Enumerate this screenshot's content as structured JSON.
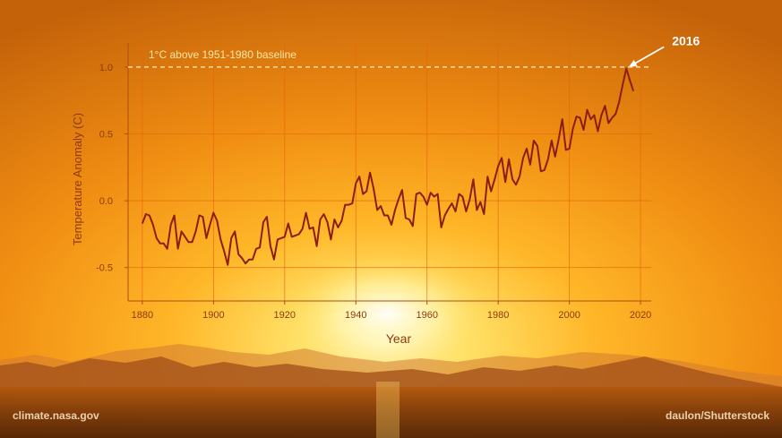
{
  "colors": {
    "line": "#8b1e12",
    "axis": "#b24a16",
    "tick_text": "#8e3a10",
    "baseline": "#ffe7a8",
    "grid": "#e4640a"
  },
  "credits": {
    "left": "climate.nasa.gov",
    "right": "daulon/Shutterstock"
  },
  "chart_data": {
    "type": "line",
    "title": "",
    "xlabel": "Year",
    "ylabel": "Temperature Anomaly (C)",
    "xlim": [
      1876,
      2023
    ],
    "ylim": [
      -0.75,
      1.18
    ],
    "xticks": [
      1880,
      1900,
      1920,
      1940,
      1960,
      1980,
      2000,
      2020
    ],
    "yticks": [
      -0.5,
      0.0,
      0.5,
      1.0
    ],
    "ytick_labels": [
      "-0.5",
      "0.0",
      "0.5",
      "1.0"
    ],
    "grid": true,
    "series": [
      {
        "x": [
          1880,
          1881,
          1882,
          1883,
          1884,
          1885,
          1886,
          1887,
          1888,
          1889,
          1890,
          1891,
          1892,
          1893,
          1894,
          1895,
          1896,
          1897,
          1898,
          1899,
          1900,
          1901,
          1902,
          1903,
          1904,
          1905,
          1906,
          1907,
          1908,
          1909,
          1910,
          1911,
          1912,
          1913,
          1914,
          1915,
          1916,
          1917,
          1918,
          1919,
          1920,
          1921,
          1922,
          1923,
          1924,
          1925,
          1926,
          1927,
          1928,
          1929,
          1930,
          1931,
          1932,
          1933,
          1934,
          1935,
          1936,
          1937,
          1938,
          1939,
          1940,
          1941,
          1942,
          1943,
          1944,
          1945,
          1946,
          1947,
          1948,
          1949,
          1950,
          1951,
          1952,
          1953,
          1954,
          1955,
          1956,
          1957,
          1958,
          1959,
          1960,
          1961,
          1962,
          1963,
          1964,
          1965,
          1966,
          1967,
          1968,
          1969,
          1970,
          1971,
          1972,
          1973,
          1974,
          1975,
          1976,
          1977,
          1978,
          1979,
          1980,
          1981,
          1982,
          1983,
          1984,
          1985,
          1986,
          1987,
          1988,
          1989,
          1990,
          1991,
          1992,
          1993,
          1994,
          1995,
          1996,
          1997,
          1998,
          1999,
          2000,
          2001,
          2002,
          2003,
          2004,
          2005,
          2006,
          2007,
          2008,
          2009,
          2010,
          2011,
          2012,
          2013,
          2014,
          2015,
          2016,
          2017,
          2018
        ],
        "values": [
          -0.17,
          -0.1,
          -0.11,
          -0.18,
          -0.28,
          -0.32,
          -0.32,
          -0.36,
          -0.18,
          -0.11,
          -0.36,
          -0.23,
          -0.27,
          -0.31,
          -0.31,
          -0.23,
          -0.11,
          -0.12,
          -0.28,
          -0.18,
          -0.09,
          -0.15,
          -0.29,
          -0.38,
          -0.48,
          -0.28,
          -0.23,
          -0.4,
          -0.43,
          -0.47,
          -0.44,
          -0.44,
          -0.36,
          -0.35,
          -0.16,
          -0.12,
          -0.34,
          -0.44,
          -0.29,
          -0.28,
          -0.27,
          -0.17,
          -0.27,
          -0.26,
          -0.25,
          -0.21,
          -0.09,
          -0.21,
          -0.2,
          -0.34,
          -0.14,
          -0.1,
          -0.16,
          -0.29,
          -0.14,
          -0.2,
          -0.15,
          -0.03,
          -0.03,
          -0.02,
          0.13,
          0.18,
          0.05,
          0.07,
          0.21,
          0.09,
          -0.07,
          -0.04,
          -0.11,
          -0.11,
          -0.18,
          -0.07,
          0.01,
          0.08,
          -0.13,
          -0.14,
          -0.19,
          0.05,
          0.06,
          0.03,
          -0.03,
          0.06,
          0.03,
          0.05,
          -0.2,
          -0.11,
          -0.06,
          -0.02,
          -0.08,
          0.05,
          0.03,
          -0.08,
          0.01,
          0.16,
          -0.07,
          -0.01,
          -0.1,
          0.18,
          0.07,
          0.16,
          0.26,
          0.32,
          0.14,
          0.31,
          0.16,
          0.12,
          0.18,
          0.32,
          0.39,
          0.27,
          0.45,
          0.41,
          0.22,
          0.23,
          0.31,
          0.45,
          0.33,
          0.46,
          0.61,
          0.38,
          0.39,
          0.54,
          0.63,
          0.62,
          0.53,
          0.68,
          0.61,
          0.64,
          0.52,
          0.64,
          0.71,
          0.58,
          0.62,
          0.65,
          0.74,
          0.87,
          0.99,
          0.9,
          0.82
        ]
      }
    ],
    "annotations": [
      {
        "text": "1°C above 1951-1980 baseline",
        "type": "hline",
        "y": 1.0
      },
      {
        "text": "2016",
        "type": "arrow",
        "x": 2016,
        "y": 0.99
      }
    ]
  }
}
